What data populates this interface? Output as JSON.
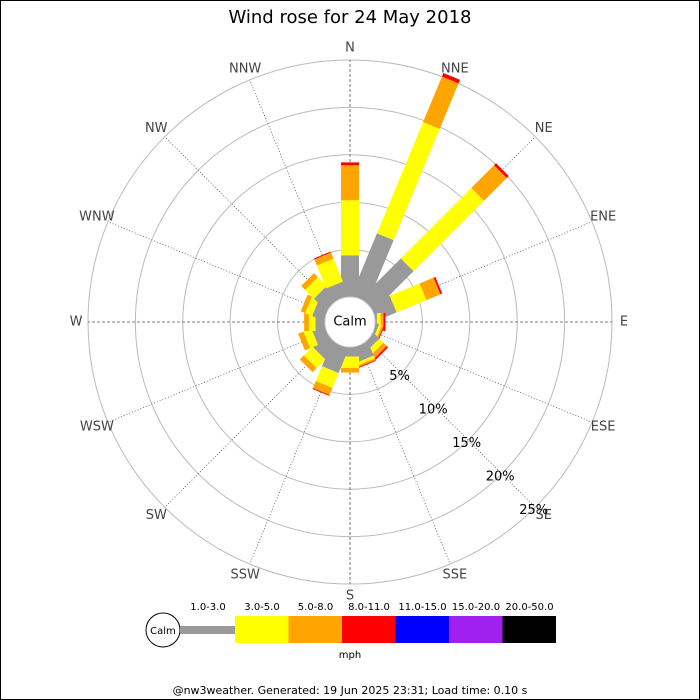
{
  "chart_data": {
    "type": "windrose",
    "title": "Wind rose for 24 May 2018",
    "directions": [
      "N",
      "NNE",
      "NE",
      "ENE",
      "E",
      "ESE",
      "SE",
      "SSE",
      "S",
      "SSW",
      "SW",
      "WSW",
      "W",
      "WNW",
      "NW",
      "NNW"
    ],
    "calm_label": "Calm",
    "rlim": [
      0,
      25
    ],
    "rticks": [
      {
        "value": 5,
        "label": "5%"
      },
      {
        "value": 10,
        "label": "10%"
      },
      {
        "value": 15,
        "label": "15%"
      },
      {
        "value": 20,
        "label": "20%"
      },
      {
        "value": 25,
        "label": "25%"
      }
    ],
    "unit": "mph",
    "series": [
      {
        "name": "1.0-3.0",
        "color": "#999999",
        "values": [
          4.4,
          7.1,
          5.9,
          2.3,
          0.2,
          0.3,
          0.8,
          1.6,
          1.0,
          2.8,
          2.0,
          1.4,
          1.0,
          1.3,
          1.8,
          1.6
        ]
      },
      {
        "name": "3.0-5.0",
        "color": "#ffff00",
        "values": [
          5.8,
          12.7,
          10.5,
          3.4,
          0.4,
          0.3,
          0.6,
          0.3,
          1.2,
          1.7,
          1.3,
          0.9,
          0.7,
          0.8,
          1.3,
          2.6
        ]
      },
      {
        "name": "5.0-8.0",
        "color": "#ffa500",
        "values": [
          3.7,
          5.2,
          3.4,
          1.6,
          0.3,
          0.2,
          0.5,
          0.2,
          0.5,
          0.8,
          0.6,
          0.6,
          0.5,
          0.5,
          0.6,
          0.7
        ]
      },
      {
        "name": "8.0-11.0",
        "color": "#ff0000",
        "values": [
          0.3,
          0.4,
          0.3,
          0.2,
          0.2,
          0.1,
          0.2,
          0.1,
          0,
          0.1,
          0,
          0,
          0,
          0,
          0,
          0.1
        ]
      },
      {
        "name": "11.0-15.0",
        "color": "#0000ff",
        "values": [
          0,
          0,
          0,
          0,
          0,
          0,
          0,
          0,
          0,
          0,
          0,
          0,
          0,
          0,
          0,
          0
        ]
      },
      {
        "name": "15.0-20.0",
        "color": "#a020f0",
        "values": [
          0,
          0,
          0,
          0,
          0,
          0,
          0,
          0,
          0,
          0,
          0,
          0,
          0,
          0,
          0,
          0
        ]
      },
      {
        "name": "20.0-50.0",
        "color": "#000000",
        "values": [
          0,
          0,
          0,
          0,
          0,
          0,
          0,
          0,
          0,
          0,
          0,
          0,
          0,
          0,
          0,
          0
        ]
      }
    ]
  },
  "footer": "@nw3weather. Generated: 19 Jun 2025 23:31; Load time: 0.10 s"
}
